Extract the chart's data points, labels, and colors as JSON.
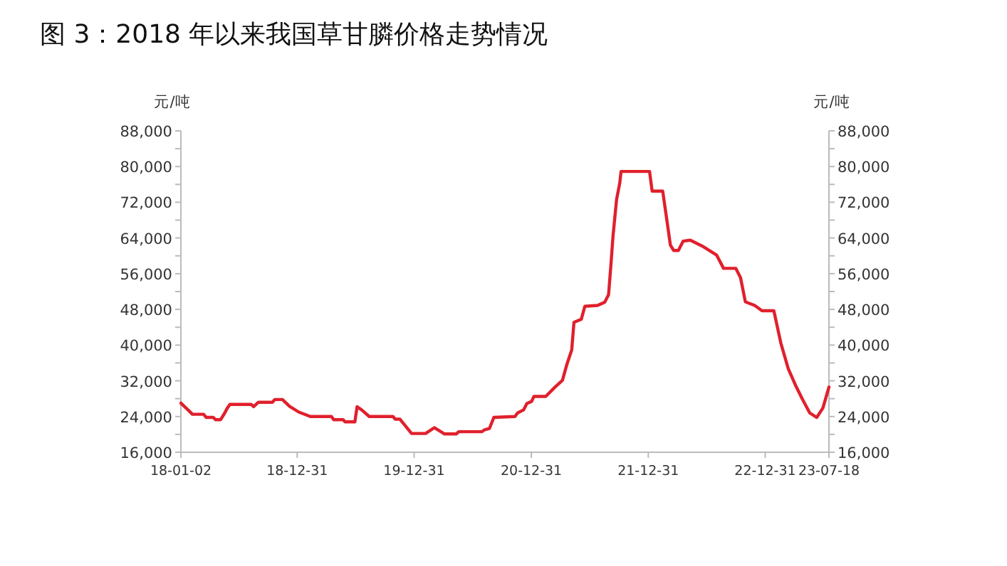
{
  "chart_data": {
    "type": "line",
    "title": "图 3：2018 年以来我国草甘膦价格走势情况",
    "ylabel": "元/吨",
    "y2label": "元/吨",
    "xlim": [
      "2018-01-02",
      "2023-07-18"
    ],
    "xticks": [
      {
        "value": "2018-01-02",
        "label": "18-01-02"
      },
      {
        "value": "2018-12-31",
        "label": "18-12-31"
      },
      {
        "value": "2019-12-31",
        "label": "19-12-31"
      },
      {
        "value": "2020-12-31",
        "label": "20-12-31"
      },
      {
        "value": "2021-12-31",
        "label": "21-12-31"
      },
      {
        "value": "2022-12-31",
        "label": "22-12-31"
      },
      {
        "value": "2023-07-18",
        "label": "23-07-18"
      }
    ],
    "ylim": [
      16000,
      88000
    ],
    "yticks": [
      {
        "value": 16000,
        "label": "16,000"
      },
      {
        "value": 20000,
        "label": null
      },
      {
        "value": 24000,
        "label": "24,000"
      },
      {
        "value": 28000,
        "label": null
      },
      {
        "value": 32000,
        "label": "32,000"
      },
      {
        "value": 36000,
        "label": null
      },
      {
        "value": 40000,
        "label": "40,000"
      },
      {
        "value": 44000,
        "label": null
      },
      {
        "value": 48000,
        "label": "48,000"
      },
      {
        "value": 52000,
        "label": null
      },
      {
        "value": 56000,
        "label": "56,000"
      },
      {
        "value": 60000,
        "label": null
      },
      {
        "value": 64000,
        "label": "64,000"
      },
      {
        "value": 68000,
        "label": null
      },
      {
        "value": 72000,
        "label": "72,000"
      },
      {
        "value": 76000,
        "label": null
      },
      {
        "value": 80000,
        "label": "80,000"
      },
      {
        "value": 84000,
        "label": null
      },
      {
        "value": 88000,
        "label": "88,000"
      }
    ],
    "y2lim": [
      16000,
      88000
    ],
    "y2ticks": [
      {
        "value": 16000,
        "label": "16,000"
      },
      {
        "value": 20000,
        "label": null
      },
      {
        "value": 24000,
        "label": "24,000"
      },
      {
        "value": 28000,
        "label": null
      },
      {
        "value": 32000,
        "label": "32,000"
      },
      {
        "value": 36000,
        "label": null
      },
      {
        "value": 40000,
        "label": "40,000"
      },
      {
        "value": 44000,
        "label": null
      },
      {
        "value": 48000,
        "label": "48,000"
      },
      {
        "value": 52000,
        "label": null
      },
      {
        "value": 56000,
        "label": "56,000"
      },
      {
        "value": 60000,
        "label": null
      },
      {
        "value": 64000,
        "label": "64,000"
      },
      {
        "value": 68000,
        "label": null
      },
      {
        "value": 72000,
        "label": "72,000"
      },
      {
        "value": 76000,
        "label": null
      },
      {
        "value": 80000,
        "label": "80,000"
      },
      {
        "value": 84000,
        "label": null
      },
      {
        "value": 88000,
        "label": "88,000"
      }
    ],
    "grid": false,
    "marker": "none",
    "line_style": "solid",
    "series": [
      {
        "color": "#e0202c",
        "x": [
          "2018-01-02",
          "2018-01-24",
          "2018-02-07",
          "2018-03-14",
          "2018-03-22",
          "2018-04-13",
          "2018-04-20",
          "2018-05-06",
          "2018-05-19",
          "2018-05-27",
          "2018-06-04",
          "2018-08-10",
          "2018-08-17",
          "2018-09-01",
          "2018-10-15",
          "2018-10-22",
          "2018-11-15",
          "2018-12-07",
          "2019-01-05",
          "2019-02-10",
          "2019-04-17",
          "2019-04-24",
          "2019-05-23",
          "2019-05-30",
          "2019-06-29",
          "2019-07-06",
          "2019-07-20",
          "2019-08-13",
          "2019-10-26",
          "2019-11-02",
          "2019-11-17",
          "2019-12-23",
          "2020-02-05",
          "2020-03-03",
          "2020-04-04",
          "2020-05-11",
          "2020-05-18",
          "2020-07-30",
          "2020-08-06",
          "2020-08-22",
          "2020-09-05",
          "2020-11-10",
          "2020-11-18",
          "2020-12-07",
          "2020-12-17",
          "2021-01-01",
          "2021-01-08",
          "2021-02-14",
          "2021-03-15",
          "2021-04-07",
          "2021-04-21",
          "2021-05-06",
          "2021-05-13",
          "2021-06-05",
          "2021-06-16",
          "2021-07-26",
          "2021-08-17",
          "2021-08-29",
          "2021-09-05",
          "2021-09-12",
          "2021-09-23",
          "2021-10-03",
          "2021-10-07",
          "2022-01-04",
          "2022-01-12",
          "2022-02-14",
          "2022-02-26",
          "2022-03-10",
          "2022-03-20",
          "2022-04-04",
          "2022-04-19",
          "2022-05-11",
          "2022-06-17",
          "2022-08-01",
          "2022-08-23",
          "2022-09-30",
          "2022-10-15",
          "2022-10-30",
          "2022-11-28",
          "2022-12-21",
          "2023-01-27",
          "2023-02-18",
          "2023-03-13",
          "2023-04-04",
          "2023-04-26",
          "2023-05-19",
          "2023-06-10",
          "2023-06-29",
          "2023-07-18"
        ],
        "values": [
          27000,
          25500,
          24500,
          24500,
          23800,
          23800,
          23300,
          23300,
          24800,
          25900,
          26700,
          26700,
          26200,
          27200,
          27200,
          27800,
          27800,
          26300,
          25000,
          24000,
          24000,
          23300,
          23300,
          22800,
          22800,
          26200,
          25500,
          24000,
          24000,
          23400,
          23400,
          20200,
          20200,
          21500,
          20100,
          20100,
          20600,
          20600,
          21000,
          21300,
          23800,
          24000,
          24800,
          25500,
          26900,
          27400,
          28500,
          28500,
          30600,
          32100,
          35700,
          38900,
          45100,
          45800,
          48700,
          48900,
          49600,
          51300,
          57600,
          64500,
          72600,
          76300,
          78900,
          78900,
          74500,
          74500,
          68500,
          62400,
          61200,
          61200,
          63300,
          63500,
          62200,
          60200,
          57200,
          57200,
          55100,
          49700,
          48900,
          47700,
          47700,
          40400,
          34700,
          31100,
          27900,
          24800,
          23800,
          25900,
          30600
        ]
      }
    ]
  }
}
